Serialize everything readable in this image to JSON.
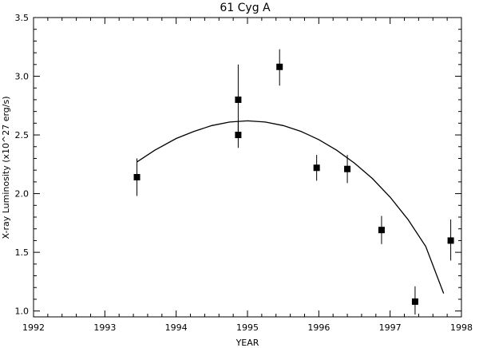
{
  "chart_data": {
    "type": "scatter",
    "title": "61 Cyg A",
    "xlabel": "YEAR",
    "ylabel": "X-ray Luminosity (x10^27 erg/s)",
    "xlim": [
      1992,
      1998
    ],
    "ylim": [
      0.95,
      3.5
    ],
    "x_ticks": [
      "1992",
      "1993",
      "1994",
      "1995",
      "1996",
      "1997",
      "1998"
    ],
    "y_ticks": [
      "1.0",
      "1.5",
      "2.0",
      "2.5",
      "3.0",
      "3.5"
    ],
    "grid": false,
    "series": [
      {
        "kind": "points_with_error_bars",
        "points": [
          {
            "x": 1993.45,
            "y": 2.14,
            "ylo": 1.98,
            "yhi": 2.3
          },
          {
            "x": 1994.87,
            "y": 2.8,
            "ylo": 2.49,
            "yhi": 3.1
          },
          {
            "x": 1994.87,
            "y": 2.5,
            "ylo": 2.39,
            "yhi": 2.61
          },
          {
            "x": 1995.45,
            "y": 3.08,
            "ylo": 2.92,
            "yhi": 3.23
          },
          {
            "x": 1995.97,
            "y": 2.22,
            "ylo": 2.11,
            "yhi": 2.33
          },
          {
            "x": 1996.4,
            "y": 2.21,
            "ylo": 2.09,
            "yhi": 2.33
          },
          {
            "x": 1996.88,
            "y": 1.69,
            "ylo": 1.57,
            "yhi": 1.81
          },
          {
            "x": 1997.35,
            "y": 1.08,
            "ylo": 0.97,
            "yhi": 1.21
          },
          {
            "x": 1997.85,
            "y": 1.6,
            "ylo": 1.43,
            "yhi": 1.78
          }
        ]
      },
      {
        "kind": "fit_curve",
        "x": [
          1993.45,
          1993.7,
          1994.0,
          1994.25,
          1994.5,
          1994.75,
          1995.0,
          1995.25,
          1995.5,
          1995.75,
          1996.0,
          1996.25,
          1996.5,
          1996.75,
          1997.0,
          1997.25,
          1997.5,
          1997.75
        ],
        "y": [
          2.27,
          2.37,
          2.47,
          2.53,
          2.58,
          2.61,
          2.62,
          2.61,
          2.58,
          2.53,
          2.46,
          2.37,
          2.26,
          2.13,
          1.97,
          1.78,
          1.55,
          1.15
        ]
      }
    ]
  }
}
